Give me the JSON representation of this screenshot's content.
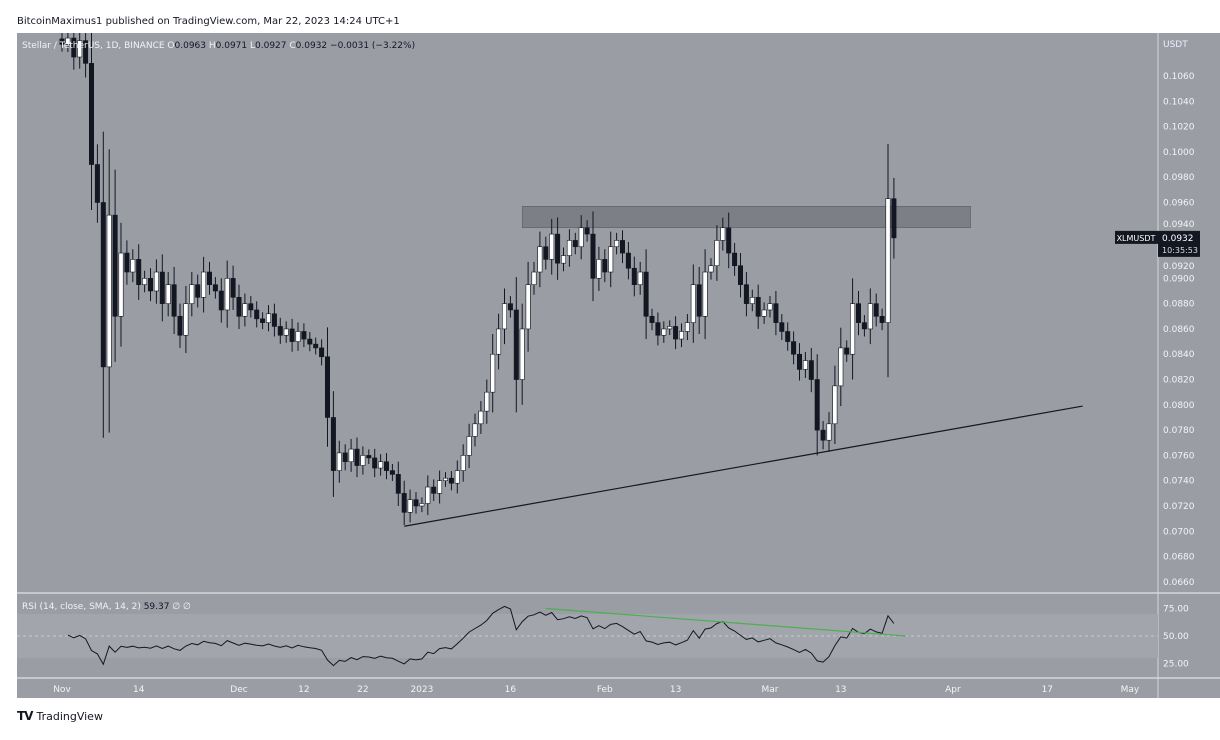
{
  "publisher_line": "BitcoinMaximus1 published on TradingView.com, Mar 22, 2023 14:24 UTC+1",
  "footer_logo": "TradingView",
  "colors": {
    "pane_bg": "#9b9da4",
    "up": "#ffffff",
    "down": "#131722",
    "zone": "#6f7278",
    "rsi_line": "#131722",
    "divergence": "#4caf50"
  },
  "chart_data": {
    "type": "candlestick",
    "legend": {
      "symbol": "Stellar / TetherUS, 1D, BINANCE",
      "o_label": "O",
      "o": "0.0963",
      "h_label": "H",
      "h": "0.0971",
      "l_label": "L",
      "l": "0.0927",
      "c_label": "C",
      "c": "0.0932",
      "change": "−0.0031 (−3.22%)"
    },
    "currency": "USDT",
    "start_date": "2022-11-01",
    "close": [
      0.1085,
      0.109,
      0.1075,
      0.1088,
      0.107,
      0.099,
      0.096,
      0.083,
      0.095,
      0.087,
      0.092,
      0.0905,
      0.0915,
      0.0895,
      0.09,
      0.089,
      0.0905,
      0.088,
      0.0895,
      0.087,
      0.0855,
      0.088,
      0.0895,
      0.0885,
      0.0905,
      0.0895,
      0.089,
      0.0875,
      0.09,
      0.0885,
      0.087,
      0.088,
      0.0875,
      0.0868,
      0.0865,
      0.0872,
      0.0862,
      0.0855,
      0.086,
      0.085,
      0.0858,
      0.0852,
      0.0848,
      0.0845,
      0.0838,
      0.079,
      0.0748,
      0.0762,
      0.0755,
      0.0765,
      0.0752,
      0.076,
      0.0758,
      0.075,
      0.0755,
      0.0748,
      0.0745,
      0.073,
      0.0715,
      0.0725,
      0.072,
      0.0722,
      0.0735,
      0.073,
      0.074,
      0.0742,
      0.0738,
      0.0748,
      0.076,
      0.0775,
      0.0785,
      0.0795,
      0.081,
      0.084,
      0.086,
      0.088,
      0.0875,
      0.082,
      0.086,
      0.0895,
      0.0905,
      0.0925,
      0.0915,
      0.0935,
      0.0912,
      0.0918,
      0.093,
      0.0925,
      0.094,
      0.0935,
      0.09,
      0.0915,
      0.0905,
      0.0925,
      0.093,
      0.092,
      0.0908,
      0.0895,
      0.0905,
      0.087,
      0.0865,
      0.0855,
      0.086,
      0.0862,
      0.0852,
      0.0858,
      0.0865,
      0.0895,
      0.087,
      0.0905,
      0.091,
      0.093,
      0.094,
      0.092,
      0.091,
      0.0895,
      0.088,
      0.0885,
      0.087,
      0.0875,
      0.088,
      0.0865,
      0.0858,
      0.085,
      0.084,
      0.0828,
      0.0835,
      0.082,
      0.078,
      0.0772,
      0.0785,
      0.0815,
      0.0845,
      0.084,
      0.088,
      0.0865,
      0.086,
      0.088,
      0.087,
      0.0865,
      0.0963,
      0.0932
    ],
    "ylim": [
      0.0652,
      0.1094
    ],
    "y_ticks": [
      "0.1060",
      "0.1040",
      "0.1020",
      "0.1000",
      "0.0980",
      "0.0960",
      "0.0940",
      "0.0920",
      "0.0900",
      "0.0880",
      "0.0860",
      "0.0840",
      "0.0820",
      "0.0800",
      "0.0780",
      "0.0760",
      "0.0740",
      "0.0720",
      "0.0700",
      "0.0680",
      "0.0660"
    ],
    "x_ticks": [
      {
        "label": "Nov",
        "day": 0
      },
      {
        "label": "14",
        "day": 13
      },
      {
        "label": "Dec",
        "day": 30
      },
      {
        "label": "12",
        "day": 41
      },
      {
        "label": "22",
        "day": 51
      },
      {
        "label": "2023",
        "day": 61
      },
      {
        "label": "16",
        "day": 76
      },
      {
        "label": "Feb",
        "day": 92
      },
      {
        "label": "13",
        "day": 104
      },
      {
        "label": "Mar",
        "day": 120
      },
      {
        "label": "13",
        "day": 132
      },
      {
        "label": "Apr",
        "day": 151
      },
      {
        "label": "17",
        "day": 167
      },
      {
        "label": "May",
        "day": 181
      }
    ],
    "last_price_tag": {
      "symbol": "XLMUSDT",
      "price": "0.0932",
      "countdown": "10:35:53"
    },
    "resistance_zone": {
      "from_day": 78,
      "to_day": 154,
      "low": 0.094,
      "high": 0.0957
    },
    "ascending_trendline": {
      "start": {
        "day": 58,
        "price": 0.0704
      },
      "end": {
        "day": 173,
        "price": 0.0799
      }
    },
    "rsi": {
      "label": "RSI (14, close, SMA, 14, 2)",
      "value": "59.37",
      "extra": "∅ ∅",
      "levels": [
        "75.00",
        "50.00",
        "25.00"
      ],
      "divergence_line": {
        "start": {
          "day": 82,
          "rsi": 75
        },
        "end": {
          "day": 143,
          "rsi": 50
        }
      }
    }
  }
}
